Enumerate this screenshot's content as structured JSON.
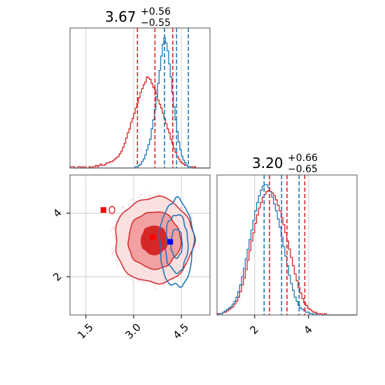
{
  "colors": {
    "red": "#d62728",
    "blue": "#1f77b4",
    "red_fill_light": "#f2a0a2",
    "grid": "#cfcfcf",
    "axis": "#555555"
  },
  "chart_data": [
    {
      "type": "histogram",
      "panel": "top-left",
      "title": {
        "value": "3.67",
        "plus": "+0.56",
        "minus": "−0.55"
      },
      "xlim": [
        1.0,
        5.4
      ],
      "grid": true,
      "series": [
        {
          "name": "",
          "color": "#d62728",
          "bins_start": 1.0,
          "bin_width": 0.05,
          "heights": [
            1,
            1,
            1,
            0,
            0,
            1,
            1,
            0,
            1,
            1,
            0,
            0,
            1,
            0,
            1,
            1,
            2,
            1,
            2,
            3,
            2,
            2,
            3,
            4,
            4,
            5,
            5,
            6,
            7,
            8,
            9,
            11,
            13,
            16,
            19,
            23,
            27,
            30,
            35,
            38,
            42,
            46,
            50,
            54,
            58,
            61,
            64,
            66,
            70,
            69,
            68,
            65,
            62,
            60,
            57,
            52,
            49,
            46,
            42,
            38,
            34,
            30,
            27,
            22,
            19,
            15,
            12,
            9,
            7,
            5,
            4,
            3,
            2,
            2,
            1,
            1,
            1,
            0,
            1,
            0,
            0,
            0,
            0,
            0,
            0,
            0,
            0,
            0
          ]
        },
        {
          "name": "",
          "color": "#1f77b4",
          "bins_start": 1.0,
          "bin_width": 0.05,
          "heights": [
            0,
            0,
            0,
            0,
            0,
            0,
            0,
            0,
            0,
            0,
            0,
            0,
            0,
            0,
            0,
            0,
            0,
            0,
            0,
            0,
            0,
            0,
            0,
            0,
            0,
            0,
            0,
            0,
            0,
            0,
            0,
            0,
            0,
            0,
            0,
            0,
            0,
            0,
            0,
            0,
            0,
            1,
            1,
            2,
            3,
            5,
            7,
            10,
            14,
            18,
            22,
            30,
            37,
            45,
            55,
            65,
            75,
            86,
            95,
            100,
            96,
            90,
            80,
            70,
            58,
            47,
            37,
            28,
            20,
            14,
            9,
            6,
            4,
            2,
            1,
            1,
            0,
            0,
            0,
            0,
            0,
            0,
            0,
            0,
            0,
            0,
            0,
            0
          ]
        }
      ],
      "quantile_lines": [
        {
          "series": "red",
          "x": [
            3.12,
            3.67,
            4.23
          ]
        },
        {
          "series": "blue",
          "x": [
            3.97,
            4.35,
            4.72
          ]
        }
      ]
    },
    {
      "type": "histogram",
      "panel": "bottom-right",
      "title": {
        "value": "3.20",
        "plus": "+0.66",
        "minus": "−0.65"
      },
      "xlim": [
        0.6,
        5.8
      ],
      "xticks": [
        "2",
        "4"
      ],
      "grid": true,
      "series": [
        {
          "name": "",
          "color": "#d62728",
          "bins_start": 0.6,
          "bin_width": 0.07,
          "heights": [
            1,
            1,
            1,
            2,
            2,
            3,
            4,
            5,
            6,
            8,
            10,
            13,
            17,
            22,
            27,
            33,
            40,
            47,
            54,
            60,
            67,
            73,
            78,
            82,
            86,
            88,
            90,
            91,
            90,
            89,
            87,
            84,
            80,
            76,
            71,
            66,
            60,
            54,
            48,
            42,
            36,
            30,
            25,
            20,
            16,
            12,
            9,
            7,
            5,
            4,
            3,
            2,
            2,
            1,
            1,
            1,
            0,
            1,
            0,
            0,
            0,
            0,
            0,
            0,
            0,
            0,
            0,
            0,
            0,
            0,
            0,
            0,
            0,
            0
          ]
        },
        {
          "name": "",
          "color": "#1f77b4",
          "bins_start": 0.6,
          "bin_width": 0.07,
          "heights": [
            0,
            1,
            1,
            2,
            3,
            4,
            5,
            6,
            8,
            10,
            13,
            17,
            22,
            28,
            34,
            41,
            48,
            55,
            62,
            69,
            76,
            82,
            87,
            91,
            94,
            95,
            95,
            93,
            90,
            86,
            81,
            76,
            70,
            64,
            57,
            50,
            43,
            36,
            29,
            23,
            18,
            13,
            10,
            7,
            5,
            4,
            3,
            2,
            2,
            1,
            1,
            0,
            1,
            0,
            0,
            0,
            0,
            0,
            0,
            0,
            0,
            0,
            0,
            0,
            0,
            0,
            0,
            0,
            0,
            0,
            0,
            0,
            0,
            0
          ]
        }
      ],
      "quantile_lines": [
        {
          "series": "red",
          "x": [
            2.55,
            3.2,
            3.86
          ]
        },
        {
          "series": "blue",
          "x": [
            2.35,
            3.0,
            3.65
          ]
        }
      ]
    },
    {
      "type": "contour",
      "panel": "bottom-left",
      "xlim": [
        1.0,
        5.4
      ],
      "ylim": [
        0.8,
        5.2
      ],
      "xticks": [
        "1.5",
        "3.0",
        "4.5"
      ],
      "yticks": [
        "2",
        "4"
      ],
      "grid": true,
      "series": [
        {
          "name": "",
          "color": "#d62728",
          "filled": true,
          "center": [
            3.65,
            3.15
          ],
          "sigma": [
            0.55,
            0.62
          ],
          "levels": [
            0.5,
            1.0,
            1.5
          ]
        },
        {
          "name": "",
          "color": "#1f77b4",
          "filled": false,
          "center": [
            4.35,
            3.05
          ],
          "sigma": [
            0.22,
            0.65
          ],
          "levels": [
            0.5,
            1.0,
            1.5
          ]
        }
      ],
      "markers": [
        {
          "label": "",
          "color": "#ff0000",
          "x": 2.05,
          "y": 4.1
        },
        {
          "label": "",
          "color": "#ff0000",
          "x": 3.6,
          "y": 3.25
        },
        {
          "label": "",
          "color": "#0000ff",
          "x": 4.15,
          "y": 3.1
        }
      ]
    }
  ]
}
